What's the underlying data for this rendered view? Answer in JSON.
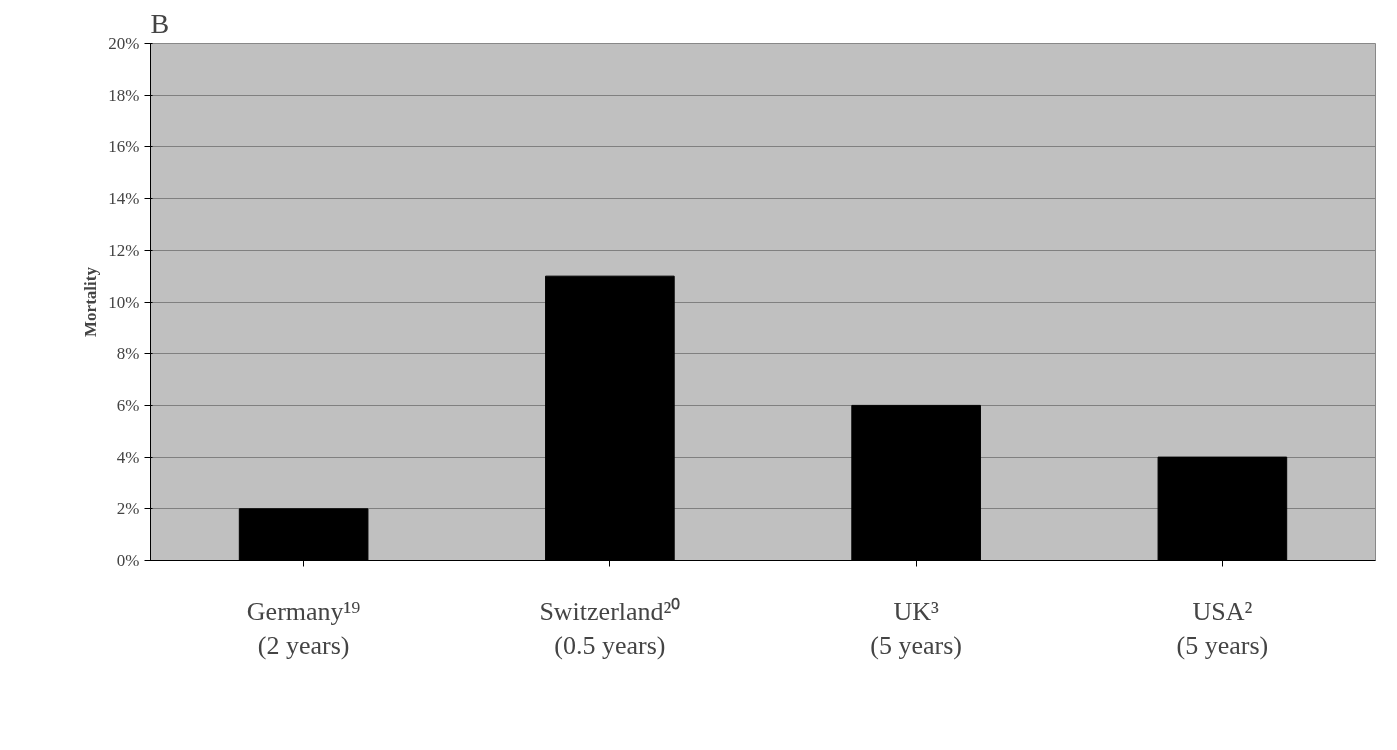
{
  "chart_data": {
    "type": "bar",
    "title": "B",
    "ylabel": "Mortality",
    "categories": [
      "Germany¹⁹\n(2 years)",
      "Switzerland²⁰\n(0.5 years)",
      "UK³\n(5 years)",
      "USA²\n(5 years)"
    ],
    "values": [
      2,
      11,
      6,
      4
    ],
    "color": "#000000",
    "ylim": [
      0,
      20
    ],
    "yticks": [
      {
        "value": 0,
        "label": "0%"
      },
      {
        "value": 2,
        "label": "2%"
      },
      {
        "value": 4,
        "label": "4%"
      },
      {
        "value": 6,
        "label": "6%"
      },
      {
        "value": 8,
        "label": "8%"
      },
      {
        "value": 10,
        "label": "10%"
      },
      {
        "value": 12,
        "label": "12%"
      },
      {
        "value": 14,
        "label": "14%"
      },
      {
        "value": 16,
        "label": "16%"
      },
      {
        "value": 18,
        "label": "18%"
      },
      {
        "value": 20,
        "label": "20%"
      }
    ],
    "grid": "y"
  }
}
